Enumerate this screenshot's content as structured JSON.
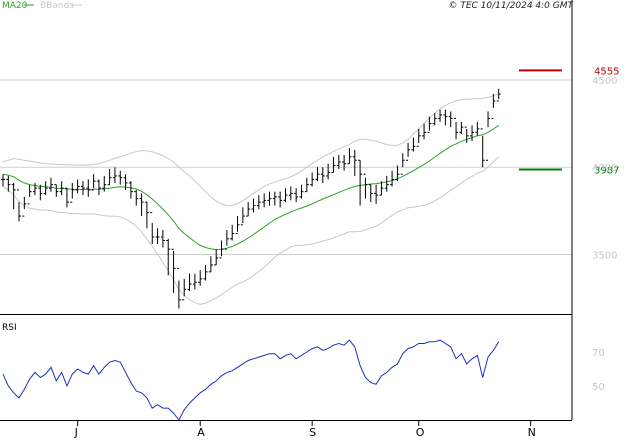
{
  "header": {
    "legend": [
      {
        "label": "MA20",
        "color": "#2e9e2e"
      },
      {
        "label": "BBands",
        "color": "#c8c8c8"
      }
    ],
    "credit": "© TEC 10/11/2024 4:0 GMT"
  },
  "colors": {
    "price_bar": "#000000",
    "ma20": "#2e9e2e",
    "bbands": "#c8c8c8",
    "rsi": "#1f2fbf",
    "resistance": "#c00000",
    "support": "#008000",
    "gridline": "#cfcfcf"
  },
  "rsi_panel": {
    "label": "RSI"
  },
  "chart_data": [
    {
      "type": "ohlc",
      "ylim": [
        3170,
        4890
      ],
      "y_ticks": [
        "4500",
        "4000",
        "3500"
      ],
      "y_tick_values": [
        4500,
        4000,
        3500
      ],
      "x_month_labels": [
        "J",
        "A",
        "S",
        "O",
        "N"
      ],
      "x_month_indices": [
        14,
        37,
        58,
        78,
        99
      ],
      "markers": [
        {
          "label": "4555",
          "value": 4555,
          "color": "#c00000"
        },
        {
          "label": "3987",
          "value": 3987,
          "color": "#008000"
        }
      ],
      "close": [
        3930,
        3900,
        3870,
        3720,
        3790,
        3860,
        3880,
        3850,
        3880,
        3900,
        3860,
        3880,
        3800,
        3870,
        3890,
        3880,
        3870,
        3920,
        3880,
        3900,
        3940,
        3950,
        3940,
        3910,
        3860,
        3820,
        3800,
        3740,
        3600,
        3600,
        3580,
        3530,
        3420,
        3240,
        3300,
        3330,
        3340,
        3360,
        3400,
        3440,
        3480,
        3530,
        3590,
        3620,
        3670,
        3720,
        3760,
        3780,
        3800,
        3810,
        3820,
        3830,
        3810,
        3840,
        3850,
        3830,
        3860,
        3900,
        3930,
        3960,
        3950,
        3970,
        4010,
        4030,
        4020,
        4060,
        4040,
        3960,
        3900,
        3850,
        3840,
        3880,
        3900,
        3930,
        3960,
        4040,
        4100,
        4120,
        4180,
        4200,
        4250,
        4280,
        4300,
        4290,
        4280,
        4200,
        4230,
        4180,
        4200,
        4220,
        4040,
        4280,
        4380,
        4420
      ],
      "high": [
        3960,
        3950,
        3910,
        3800,
        3830,
        3900,
        3910,
        3900,
        3920,
        3940,
        3900,
        3920,
        3880,
        3910,
        3930,
        3920,
        3930,
        3960,
        3930,
        3950,
        3990,
        4000,
        3980,
        3960,
        3920,
        3870,
        3850,
        3800,
        3680,
        3650,
        3640,
        3590,
        3520,
        3350,
        3360,
        3390,
        3390,
        3410,
        3440,
        3490,
        3530,
        3580,
        3640,
        3670,
        3720,
        3770,
        3800,
        3820,
        3840,
        3850,
        3860,
        3860,
        3860,
        3880,
        3890,
        3880,
        3900,
        3940,
        3970,
        4000,
        4000,
        4020,
        4060,
        4070,
        4070,
        4110,
        4100,
        4040,
        3940,
        3900,
        3900,
        3920,
        3950,
        3980,
        4010,
        4080,
        4140,
        4170,
        4220,
        4250,
        4290,
        4310,
        4330,
        4330,
        4320,
        4260,
        4260,
        4220,
        4240,
        4260,
        4180,
        4320,
        4420,
        4450
      ],
      "low": [
        3890,
        3860,
        3760,
        3690,
        3760,
        3830,
        3840,
        3810,
        3840,
        3860,
        3830,
        3840,
        3770,
        3820,
        3850,
        3840,
        3830,
        3880,
        3840,
        3860,
        3900,
        3910,
        3900,
        3870,
        3820,
        3780,
        3720,
        3650,
        3560,
        3560,
        3540,
        3380,
        3280,
        3190,
        3260,
        3290,
        3300,
        3320,
        3350,
        3400,
        3440,
        3490,
        3550,
        3580,
        3630,
        3680,
        3720,
        3740,
        3760,
        3770,
        3780,
        3780,
        3770,
        3800,
        3810,
        3800,
        3820,
        3860,
        3890,
        3920,
        3910,
        3930,
        3970,
        3990,
        3980,
        4020,
        3950,
        3780,
        3820,
        3800,
        3790,
        3840,
        3860,
        3890,
        3920,
        4000,
        4060,
        4090,
        4140,
        4160,
        4210,
        4240,
        4260,
        4240,
        4230,
        4160,
        4190,
        4140,
        4150,
        4180,
        4000,
        4230,
        4340,
        4390
      ],
      "ma20": [
        3960,
        3955,
        3945,
        3925,
        3910,
        3900,
        3895,
        3890,
        3888,
        3885,
        3880,
        3878,
        3876,
        3874,
        3873,
        3872,
        3872,
        3874,
        3874,
        3876,
        3880,
        3885,
        3888,
        3886,
        3882,
        3876,
        3862,
        3842,
        3818,
        3790,
        3760,
        3728,
        3692,
        3650,
        3620,
        3596,
        3572,
        3552,
        3540,
        3532,
        3528,
        3530,
        3536,
        3546,
        3560,
        3576,
        3594,
        3614,
        3636,
        3658,
        3680,
        3700,
        3716,
        3730,
        3744,
        3756,
        3766,
        3778,
        3790,
        3804,
        3818,
        3830,
        3842,
        3856,
        3868,
        3880,
        3890,
        3896,
        3900,
        3904,
        3906,
        3910,
        3916,
        3924,
        3934,
        3948,
        3964,
        3980,
        3998,
        4016,
        4036,
        4058,
        4080,
        4100,
        4120,
        4134,
        4148,
        4160,
        4170,
        4180,
        4186,
        4200,
        4220,
        4240
      ],
      "bb_upper": [
        4030,
        4040,
        4050,
        4045,
        4040,
        4035,
        4030,
        4025,
        4020,
        4018,
        4016,
        4015,
        4014,
        4013,
        4012,
        4012,
        4012,
        4015,
        4020,
        4030,
        4040,
        4050,
        4060,
        4070,
        4080,
        4090,
        4095,
        4095,
        4088,
        4078,
        4066,
        4050,
        4030,
        4000,
        3975,
        3950,
        3920,
        3890,
        3860,
        3830,
        3805,
        3790,
        3780,
        3780,
        3790,
        3810,
        3830,
        3850,
        3870,
        3890,
        3905,
        3915,
        3925,
        3935,
        3945,
        3960,
        3980,
        4000,
        4020,
        4040,
        4060,
        4075,
        4090,
        4105,
        4118,
        4130,
        4150,
        4160,
        4160,
        4155,
        4150,
        4140,
        4130,
        4125,
        4125,
        4140,
        4160,
        4190,
        4220,
        4250,
        4280,
        4310,
        4335,
        4355,
        4370,
        4380,
        4388,
        4390,
        4392,
        4393,
        4395,
        4400,
        4410,
        4420
      ],
      "bb_lower": [
        3890,
        3870,
        3840,
        3805,
        3780,
        3765,
        3760,
        3755,
        3756,
        3752,
        3744,
        3741,
        3738,
        3735,
        3734,
        3732,
        3732,
        3733,
        3728,
        3722,
        3720,
        3720,
        3716,
        3702,
        3684,
        3662,
        3629,
        3589,
        3548,
        3502,
        3454,
        3406,
        3354,
        3300,
        3265,
        3242,
        3224,
        3214,
        3220,
        3234,
        3251,
        3270,
        3292,
        3312,
        3330,
        3342,
        3358,
        3378,
        3402,
        3426,
        3455,
        3485,
        3507,
        3525,
        3543,
        3552,
        3552,
        3556,
        3560,
        3568,
        3576,
        3585,
        3594,
        3607,
        3618,
        3630,
        3630,
        3632,
        3640,
        3653,
        3662,
        3680,
        3702,
        3723,
        3743,
        3756,
        3768,
        3770,
        3776,
        3782,
        3792,
        3806,
        3825,
        3845,
        3870,
        3888,
        3908,
        3930,
        3948,
        3967,
        3977,
        4000,
        4030,
        4060
      ]
    },
    {
      "type": "line",
      "name": "RSI",
      "ylim": [
        30,
        90
      ],
      "y_ticks": [
        "70",
        "50"
      ],
      "y_tick_values": [
        70,
        50
      ],
      "values": [
        57,
        50,
        46,
        43,
        48,
        54,
        58,
        55,
        57,
        61,
        53,
        58,
        50,
        57,
        60,
        58,
        57,
        62,
        57,
        61,
        64,
        65,
        64,
        58,
        52,
        47,
        46,
        43,
        37,
        39,
        37,
        37,
        34,
        30,
        36,
        40,
        43,
        46,
        48,
        51,
        53,
        56,
        58,
        59,
        61,
        63,
        65,
        66,
        67,
        68,
        69,
        69,
        66,
        68,
        69,
        66,
        68,
        70,
        72,
        73,
        71,
        72,
        74,
        75,
        74,
        77,
        73,
        62,
        55,
        52,
        51,
        56,
        58,
        61,
        63,
        69,
        72,
        73,
        75,
        75,
        76,
        76,
        77,
        75,
        73,
        66,
        69,
        63,
        66,
        68,
        55,
        67,
        71,
        76
      ]
    }
  ]
}
